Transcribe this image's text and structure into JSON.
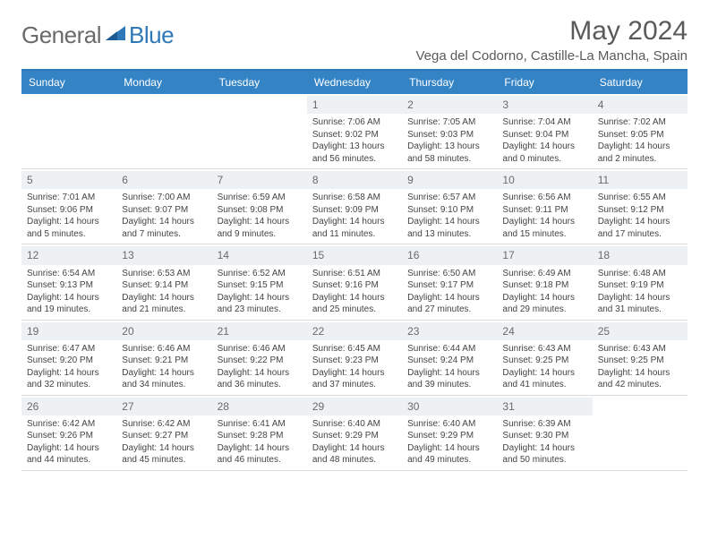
{
  "logo": {
    "word1": "General",
    "word2": "Blue"
  },
  "title": "May 2024",
  "location": "Vega del Codorno, Castille-La Mancha, Spain",
  "colors": {
    "header_bar": "#3383c5",
    "header_text": "#ffffff",
    "rule": "#2f78b8",
    "daynum_bg": "#eef1f3",
    "cell_border": "#d9d9d9",
    "body_text": "#444444",
    "title_text": "#5a5a5a",
    "logo_gray": "#6a6a6a",
    "logo_blue": "#2f78b8"
  },
  "fonts": {
    "title_pt": 30,
    "location_pt": 15,
    "dayhead_pt": 12,
    "daynum_pt": 12,
    "body_pt": 10
  },
  "day_names": [
    "Sunday",
    "Monday",
    "Tuesday",
    "Wednesday",
    "Thursday",
    "Friday",
    "Saturday"
  ],
  "weeks": [
    [
      {
        "n": "",
        "sr": "",
        "ss": "",
        "dl": ""
      },
      {
        "n": "",
        "sr": "",
        "ss": "",
        "dl": ""
      },
      {
        "n": "",
        "sr": "",
        "ss": "",
        "dl": ""
      },
      {
        "n": "1",
        "sr": "7:06 AM",
        "ss": "9:02 PM",
        "dl": "13 hours and 56 minutes."
      },
      {
        "n": "2",
        "sr": "7:05 AM",
        "ss": "9:03 PM",
        "dl": "13 hours and 58 minutes."
      },
      {
        "n": "3",
        "sr": "7:04 AM",
        "ss": "9:04 PM",
        "dl": "14 hours and 0 minutes."
      },
      {
        "n": "4",
        "sr": "7:02 AM",
        "ss": "9:05 PM",
        "dl": "14 hours and 2 minutes."
      }
    ],
    [
      {
        "n": "5",
        "sr": "7:01 AM",
        "ss": "9:06 PM",
        "dl": "14 hours and 5 minutes."
      },
      {
        "n": "6",
        "sr": "7:00 AM",
        "ss": "9:07 PM",
        "dl": "14 hours and 7 minutes."
      },
      {
        "n": "7",
        "sr": "6:59 AM",
        "ss": "9:08 PM",
        "dl": "14 hours and 9 minutes."
      },
      {
        "n": "8",
        "sr": "6:58 AM",
        "ss": "9:09 PM",
        "dl": "14 hours and 11 minutes."
      },
      {
        "n": "9",
        "sr": "6:57 AM",
        "ss": "9:10 PM",
        "dl": "14 hours and 13 minutes."
      },
      {
        "n": "10",
        "sr": "6:56 AM",
        "ss": "9:11 PM",
        "dl": "14 hours and 15 minutes."
      },
      {
        "n": "11",
        "sr": "6:55 AM",
        "ss": "9:12 PM",
        "dl": "14 hours and 17 minutes."
      }
    ],
    [
      {
        "n": "12",
        "sr": "6:54 AM",
        "ss": "9:13 PM",
        "dl": "14 hours and 19 minutes."
      },
      {
        "n": "13",
        "sr": "6:53 AM",
        "ss": "9:14 PM",
        "dl": "14 hours and 21 minutes."
      },
      {
        "n": "14",
        "sr": "6:52 AM",
        "ss": "9:15 PM",
        "dl": "14 hours and 23 minutes."
      },
      {
        "n": "15",
        "sr": "6:51 AM",
        "ss": "9:16 PM",
        "dl": "14 hours and 25 minutes."
      },
      {
        "n": "16",
        "sr": "6:50 AM",
        "ss": "9:17 PM",
        "dl": "14 hours and 27 minutes."
      },
      {
        "n": "17",
        "sr": "6:49 AM",
        "ss": "9:18 PM",
        "dl": "14 hours and 29 minutes."
      },
      {
        "n": "18",
        "sr": "6:48 AM",
        "ss": "9:19 PM",
        "dl": "14 hours and 31 minutes."
      }
    ],
    [
      {
        "n": "19",
        "sr": "6:47 AM",
        "ss": "9:20 PM",
        "dl": "14 hours and 32 minutes."
      },
      {
        "n": "20",
        "sr": "6:46 AM",
        "ss": "9:21 PM",
        "dl": "14 hours and 34 minutes."
      },
      {
        "n": "21",
        "sr": "6:46 AM",
        "ss": "9:22 PM",
        "dl": "14 hours and 36 minutes."
      },
      {
        "n": "22",
        "sr": "6:45 AM",
        "ss": "9:23 PM",
        "dl": "14 hours and 37 minutes."
      },
      {
        "n": "23",
        "sr": "6:44 AM",
        "ss": "9:24 PM",
        "dl": "14 hours and 39 minutes."
      },
      {
        "n": "24",
        "sr": "6:43 AM",
        "ss": "9:25 PM",
        "dl": "14 hours and 41 minutes."
      },
      {
        "n": "25",
        "sr": "6:43 AM",
        "ss": "9:25 PM",
        "dl": "14 hours and 42 minutes."
      }
    ],
    [
      {
        "n": "26",
        "sr": "6:42 AM",
        "ss": "9:26 PM",
        "dl": "14 hours and 44 minutes."
      },
      {
        "n": "27",
        "sr": "6:42 AM",
        "ss": "9:27 PM",
        "dl": "14 hours and 45 minutes."
      },
      {
        "n": "28",
        "sr": "6:41 AM",
        "ss": "9:28 PM",
        "dl": "14 hours and 46 minutes."
      },
      {
        "n": "29",
        "sr": "6:40 AM",
        "ss": "9:29 PM",
        "dl": "14 hours and 48 minutes."
      },
      {
        "n": "30",
        "sr": "6:40 AM",
        "ss": "9:29 PM",
        "dl": "14 hours and 49 minutes."
      },
      {
        "n": "31",
        "sr": "6:39 AM",
        "ss": "9:30 PM",
        "dl": "14 hours and 50 minutes."
      },
      {
        "n": "",
        "sr": "",
        "ss": "",
        "dl": ""
      }
    ]
  ]
}
